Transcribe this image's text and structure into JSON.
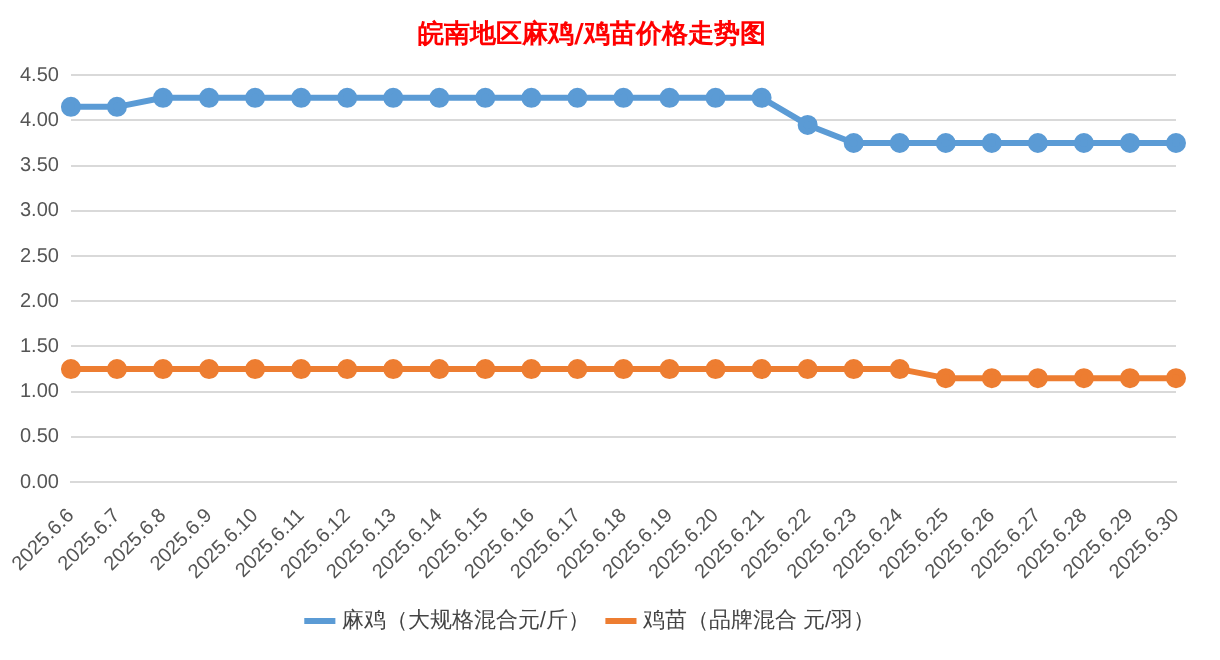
{
  "chart_data": {
    "type": "line",
    "title": "皖南地区麻鸡/鸡苗价格走势图",
    "categories": [
      "2025.6.6",
      "2025.6.7",
      "2025.6.8",
      "2025.6.9",
      "2025.6.10",
      "2025.6.11",
      "2025.6.12",
      "2025.6.13",
      "2025.6.14",
      "2025.6.15",
      "2025.6.16",
      "2025.6.17",
      "2025.6.18",
      "2025.6.19",
      "2025.6.20",
      "2025.6.21",
      "2025.6.22",
      "2025.6.23",
      "2025.6.24",
      "2025.6.25",
      "2025.6.26",
      "2025.6.27",
      "2025.6.28",
      "2025.6.29",
      "2025.6.30"
    ],
    "series": [
      {
        "name": "麻鸡（大规格混合元/斤）",
        "color": "#5b9bd5",
        "values": [
          4.15,
          4.15,
          4.25,
          4.25,
          4.25,
          4.25,
          4.25,
          4.25,
          4.25,
          4.25,
          4.25,
          4.25,
          4.25,
          4.25,
          4.25,
          4.25,
          3.95,
          3.75,
          3.75,
          3.75,
          3.75,
          3.75,
          3.75,
          3.75,
          3.75
        ]
      },
      {
        "name": "鸡苗（品牌混合 元/羽）",
        "color": "#ed7d31",
        "values": [
          1.25,
          1.25,
          1.25,
          1.25,
          1.25,
          1.25,
          1.25,
          1.25,
          1.25,
          1.25,
          1.25,
          1.25,
          1.25,
          1.25,
          1.25,
          1.25,
          1.25,
          1.25,
          1.25,
          1.15,
          1.15,
          1.15,
          1.15,
          1.15,
          1.15
        ]
      }
    ],
    "ylim": [
      0,
      4.5
    ],
    "yticks": [
      {
        "value": 0,
        "label": "0.00"
      },
      {
        "value": 0.5,
        "label": "0.50"
      },
      {
        "value": 1,
        "label": "1.00"
      },
      {
        "value": 1.5,
        "label": "1.50"
      },
      {
        "value": 2,
        "label": "2.00"
      },
      {
        "value": 2.5,
        "label": "2.50"
      },
      {
        "value": 3,
        "label": "3.00"
      },
      {
        "value": 3.5,
        "label": "3.50"
      },
      {
        "value": 4,
        "label": "4.00"
      },
      {
        "value": 4.5,
        "label": "4.50"
      }
    ],
    "grid": "y",
    "legend": "bottom",
    "marker": "circle",
    "line_style": "solid"
  }
}
